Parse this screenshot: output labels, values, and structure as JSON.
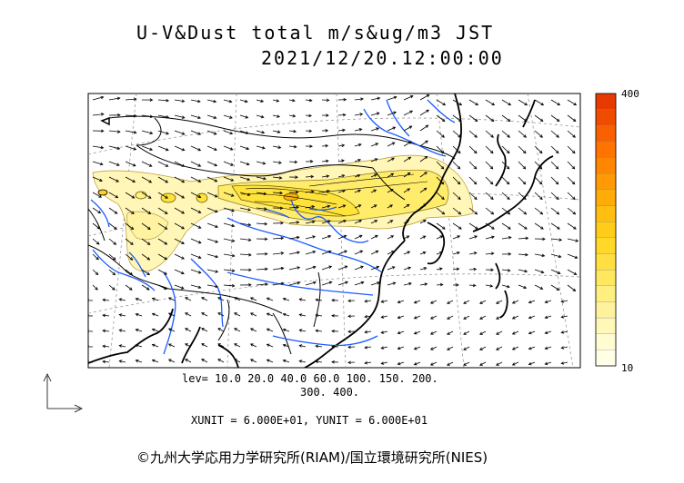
{
  "title": {
    "line1": "U-V&Dust total m/s&ug/m3 JST",
    "line2": "2021/12/20.12:00:00"
  },
  "legend": {
    "levels_line1": "lev= 10.0 20.0 40.0 60.0 100. 150. 200.",
    "levels_line2": "300. 400.",
    "units": "XUNIT = 6.000E+01, YUNIT = 6.000E+01"
  },
  "colorbar": {
    "max_label": "400",
    "min_label": "10",
    "colors": [
      "#ffffe8",
      "#fffcd2",
      "#fff8b8",
      "#fff29c",
      "#ffee80",
      "#ffe860",
      "#ffe040",
      "#ffd828",
      "#ffcc18",
      "#ffbe10",
      "#ffac08",
      "#ff9a04",
      "#ff8600",
      "#ff7400",
      "#f86000",
      "#f04c00",
      "#e83a00"
    ]
  },
  "copyright": "©九州大学応用力学研究所(RIAM)/国立環境研究所(NIES)",
  "colors": {
    "coast": "#000000",
    "rivers": "#1a5cff",
    "dust_low": "#fff3a8",
    "dust_mid": "#ffe23a",
    "dust_high": "#d9a400",
    "vectors": "#000000",
    "grid": "#888888"
  }
}
